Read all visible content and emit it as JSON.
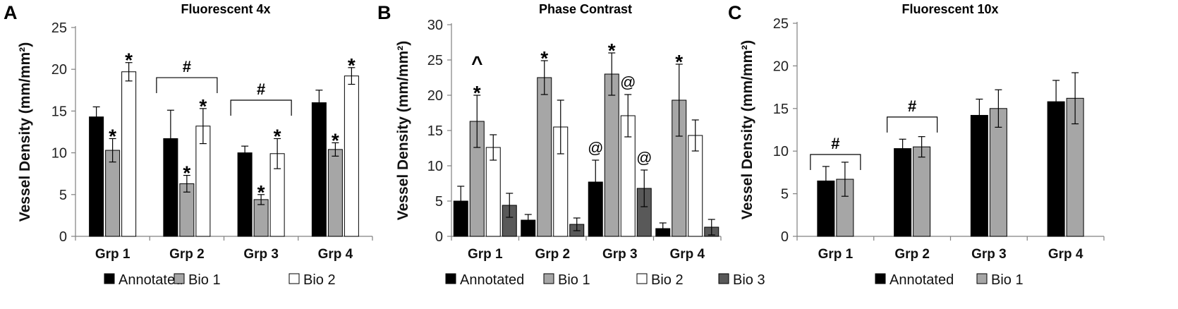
{
  "chart_data": [
    {
      "type": "bar",
      "panel_label": "A",
      "title": "Fluorescent 4x",
      "ylabel": "Vessel Density (mm/mm²)",
      "ylim": [
        0,
        25
      ],
      "yticks": [
        0,
        5,
        10,
        15,
        20,
        25
      ],
      "categories": [
        "Grp 1",
        "Grp 2",
        "Grp 3",
        "Grp 4"
      ],
      "series": [
        {
          "name": "Annotated",
          "color": "#000000",
          "values": [
            14.3,
            11.7,
            10.0,
            16.0
          ],
          "errors": [
            1.2,
            3.4,
            0.8,
            1.5
          ]
        },
        {
          "name": "Bio 1",
          "color": "#a6a6a6",
          "values": [
            10.3,
            6.3,
            4.4,
            10.4
          ],
          "errors": [
            1.4,
            1.0,
            0.6,
            0.8
          ]
        },
        {
          "name": "Bio 2",
          "color": "#ffffff",
          "values": [
            19.7,
            13.2,
            9.9,
            19.2
          ],
          "errors": [
            1.1,
            2.1,
            1.8,
            1.0
          ]
        }
      ],
      "annotations": [
        {
          "text": "*",
          "series": 1,
          "category": 0
        },
        {
          "text": "*",
          "series": 2,
          "category": 0
        },
        {
          "text": "*",
          "series": 1,
          "category": 1
        },
        {
          "text": "*",
          "series": 2,
          "category": 1
        },
        {
          "text": "*",
          "series": 1,
          "category": 2
        },
        {
          "text": "*",
          "series": 2,
          "category": 2
        },
        {
          "text": "*",
          "series": 1,
          "category": 3
        },
        {
          "text": "*",
          "series": 2,
          "category": 3
        }
      ],
      "brackets": [
        {
          "text": "#",
          "category": 1,
          "level": 19.0
        },
        {
          "text": "#",
          "category": 2,
          "level": 16.3
        }
      ]
    },
    {
      "type": "bar",
      "panel_label": "B",
      "title": "Phase Contrast",
      "ylabel": "Vessel Density (mm/mm²)",
      "ylim": [
        0,
        30
      ],
      "yticks": [
        0,
        5,
        10,
        15,
        20,
        25,
        30
      ],
      "categories": [
        "Grp 1",
        "Grp 2",
        "Grp 3",
        "Grp 4"
      ],
      "series": [
        {
          "name": "Annotated",
          "color": "#000000",
          "values": [
            5.0,
            2.3,
            7.7,
            1.1
          ],
          "errors": [
            2.1,
            0.8,
            3.1,
            0.8
          ]
        },
        {
          "name": "Bio 1",
          "color": "#a6a6a6",
          "values": [
            16.3,
            22.5,
            23.0,
            19.3
          ],
          "errors": [
            3.7,
            2.4,
            3.0,
            5.1
          ]
        },
        {
          "name": "Bio 2",
          "color": "#ffffff",
          "values": [
            12.6,
            15.5,
            17.1,
            14.3
          ],
          "errors": [
            1.8,
            3.8,
            3.0,
            2.2
          ]
        },
        {
          "name": "Bio 3",
          "color": "#595959",
          "values": [
            4.4,
            1.7,
            6.8,
            1.3
          ],
          "errors": [
            1.7,
            0.9,
            2.6,
            1.1
          ]
        }
      ],
      "annotations": [
        {
          "text": "*",
          "series": 1,
          "category": 0
        },
        {
          "text": "^",
          "series": 1,
          "category": 0,
          "stack": 1
        },
        {
          "text": "*",
          "series": 1,
          "category": 1
        },
        {
          "text": "*",
          "series": 1,
          "category": 2
        },
        {
          "text": "@",
          "series": 2,
          "category": 2
        },
        {
          "text": "@",
          "series": 0,
          "category": 2
        },
        {
          "text": "@",
          "series": 3,
          "category": 2
        },
        {
          "text": "*",
          "series": 1,
          "category": 3
        }
      ],
      "brackets": []
    },
    {
      "type": "bar",
      "panel_label": "C",
      "title": "Fluorescent 10x",
      "ylabel": "Vessel Density (mm/mm²)",
      "ylim": [
        0,
        25
      ],
      "yticks": [
        0,
        5,
        10,
        15,
        20,
        25
      ],
      "categories": [
        "Grp 1",
        "Grp 2",
        "Grp 3",
        "Grp 4"
      ],
      "series": [
        {
          "name": "Annotated",
          "color": "#000000",
          "values": [
            6.5,
            10.3,
            14.2,
            15.8
          ],
          "errors": [
            1.7,
            1.1,
            1.9,
            2.5
          ]
        },
        {
          "name": "Bio 1",
          "color": "#a6a6a6",
          "values": [
            6.7,
            10.5,
            15.0,
            16.2
          ],
          "errors": [
            2.0,
            1.2,
            2.2,
            3.0
          ]
        }
      ],
      "annotations": [],
      "brackets": [
        {
          "text": "#",
          "category": 0,
          "level": 9.6
        },
        {
          "text": "#",
          "category": 1,
          "level": 14.0
        }
      ]
    }
  ]
}
